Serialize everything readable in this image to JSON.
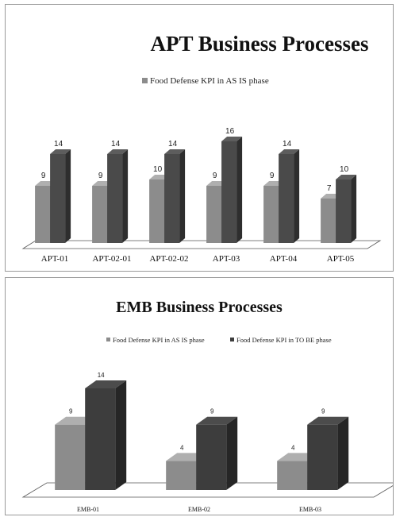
{
  "chart_data": [
    {
      "type": "bar",
      "title": "APT Business Processes",
      "categories": [
        "APT-01",
        "APT-02-01",
        "APT-02-02",
        "APT-03",
        "APT-04",
        "APT-05"
      ],
      "series": [
        {
          "name": "Food Defense KPI in AS IS phase",
          "values": [
            9,
            9,
            10,
            9,
            9,
            7
          ]
        },
        {
          "values": [
            14,
            14,
            14,
            16,
            14,
            10
          ]
        }
      ],
      "ylim": [
        0,
        16
      ],
      "legend": "top-center",
      "grid": false,
      "colors": {
        "series0": "#8c8c8c",
        "series1": "#4a4a4a"
      }
    },
    {
      "type": "bar",
      "title": "EMB Business Processes",
      "categories": [
        "EMB-01",
        "EMB-02",
        "EMB-03"
      ],
      "series": [
        {
          "name": "Food Defense KPI in AS IS phase",
          "values": [
            9,
            4,
            4
          ]
        },
        {
          "name": "Food Defense KPI in TO BE phase",
          "values": [
            14,
            9,
            9
          ]
        }
      ],
      "ylim": [
        0,
        14
      ],
      "legend": "top-center",
      "grid": false,
      "colors": {
        "series0": "#8c8c8c",
        "series1": "#3d3d3d"
      }
    }
  ]
}
